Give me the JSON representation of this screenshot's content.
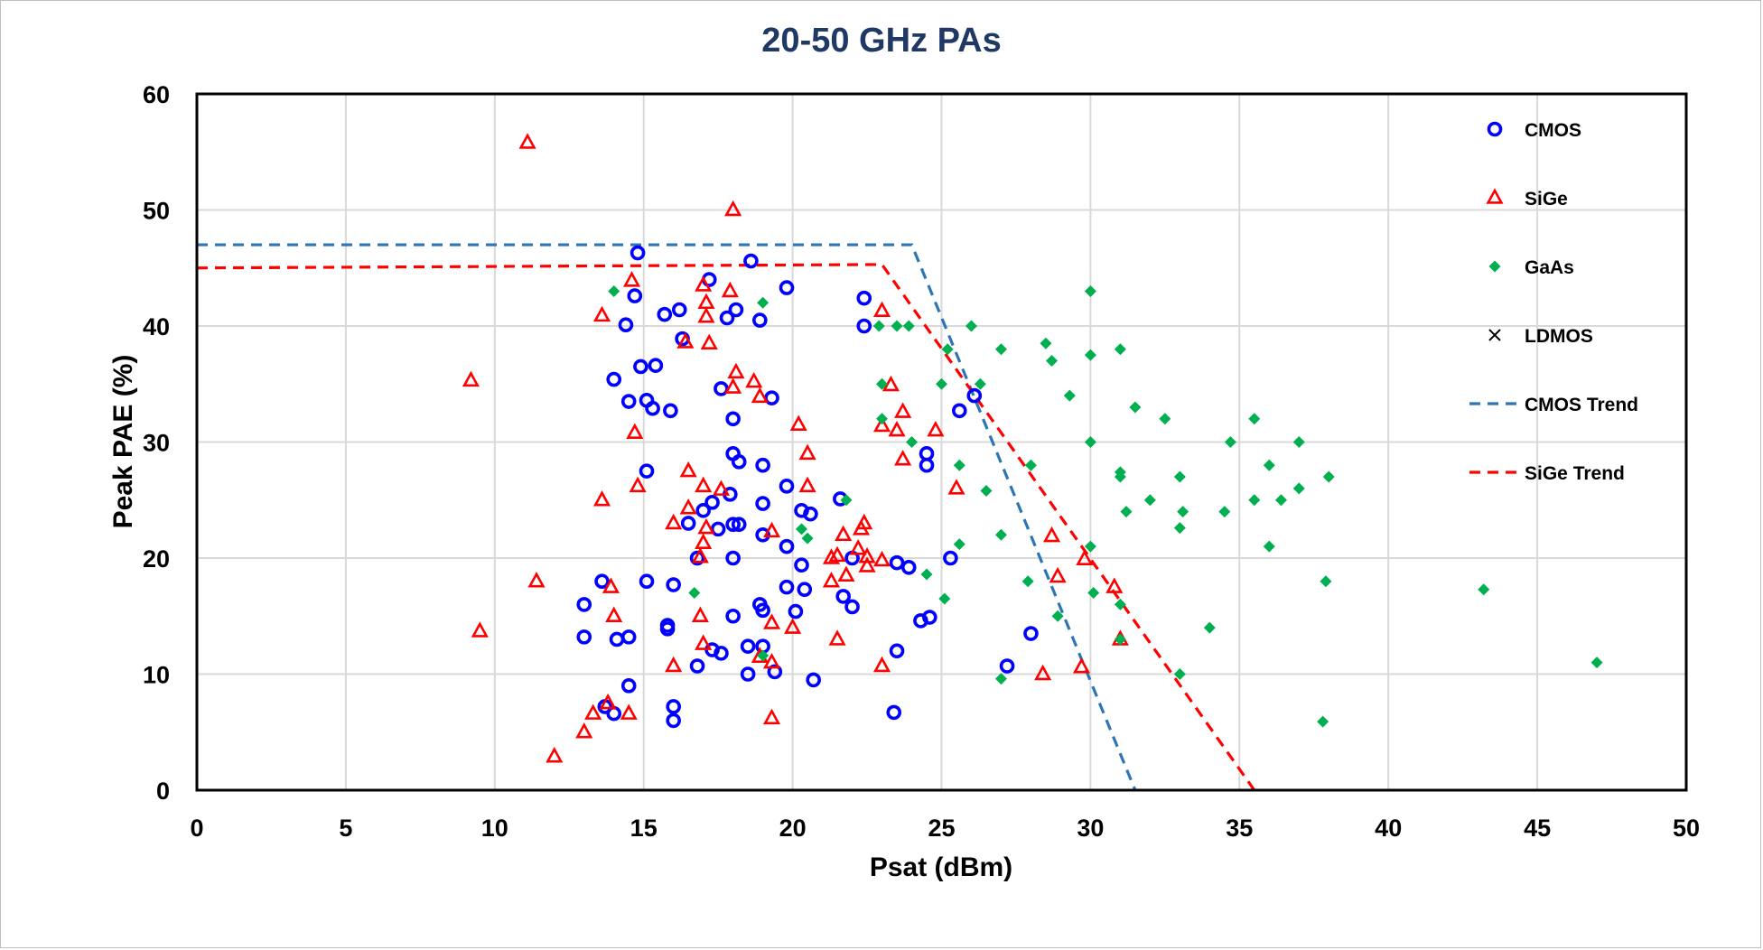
{
  "chart_data": {
    "type": "scatter",
    "title": "20-50 GHz PAs",
    "xlabel": "Psat (dBm)",
    "ylabel": "Peak PAE (%)",
    "xlim": [
      0,
      50
    ],
    "ylim": [
      0,
      60
    ],
    "x_ticks": [
      0,
      5,
      10,
      15,
      20,
      25,
      30,
      35,
      40,
      45,
      50
    ],
    "y_ticks": [
      0,
      10,
      20,
      30,
      40,
      50,
      60
    ],
    "grid": true,
    "legend_position": "right",
    "series": [
      {
        "name": "CMOS",
        "marker": "open-circle",
        "color": "#0000ff",
        "points": [
          [
            14.8,
            46.3
          ],
          [
            17.2,
            44.0
          ],
          [
            18.6,
            45.6
          ],
          [
            19.8,
            43.3
          ],
          [
            14.7,
            42.6
          ],
          [
            22.4,
            42.4
          ],
          [
            16.2,
            41.4
          ],
          [
            15.7,
            41.0
          ],
          [
            18.1,
            41.4
          ],
          [
            17.8,
            40.7
          ],
          [
            18.9,
            40.5
          ],
          [
            14.4,
            40.1
          ],
          [
            22.4,
            40.0
          ],
          [
            16.3,
            38.9
          ],
          [
            14.9,
            36.5
          ],
          [
            15.4,
            36.6
          ],
          [
            14.0,
            35.4
          ],
          [
            17.6,
            34.6
          ],
          [
            15.1,
            33.6
          ],
          [
            14.5,
            33.5
          ],
          [
            15.3,
            32.9
          ],
          [
            15.9,
            32.7
          ],
          [
            19.3,
            33.8
          ],
          [
            18.0,
            32.0
          ],
          [
            25.6,
            32.7
          ],
          [
            26.1,
            34.0
          ],
          [
            18.0,
            29.0
          ],
          [
            18.2,
            28.3
          ],
          [
            19.0,
            28.0
          ],
          [
            24.5,
            28.0
          ],
          [
            24.5,
            29.0
          ],
          [
            15.1,
            27.5
          ],
          [
            19.8,
            26.2
          ],
          [
            17.9,
            25.5
          ],
          [
            21.6,
            25.1
          ],
          [
            19.0,
            24.7
          ],
          [
            17.3,
            24.8
          ],
          [
            17.0,
            24.1
          ],
          [
            20.3,
            24.1
          ],
          [
            20.6,
            23.8
          ],
          [
            16.5,
            23.0
          ],
          [
            18.0,
            22.9
          ],
          [
            18.2,
            22.9
          ],
          [
            17.5,
            22.5
          ],
          [
            19.0,
            22.0
          ],
          [
            19.8,
            21.0
          ],
          [
            16.8,
            20.0
          ],
          [
            18.0,
            20.0
          ],
          [
            20.3,
            19.4
          ],
          [
            22.0,
            20.0
          ],
          [
            23.5,
            19.6
          ],
          [
            23.9,
            19.2
          ],
          [
            25.3,
            20.0
          ],
          [
            13.6,
            18.0
          ],
          [
            15.1,
            18.0
          ],
          [
            16.0,
            17.7
          ],
          [
            19.8,
            17.5
          ],
          [
            20.4,
            17.3
          ],
          [
            21.7,
            16.7
          ],
          [
            22.0,
            15.8
          ],
          [
            13.0,
            16.0
          ],
          [
            18.9,
            16.0
          ],
          [
            19.0,
            15.5
          ],
          [
            20.1,
            15.4
          ],
          [
            18.0,
            15.0
          ],
          [
            24.3,
            14.6
          ],
          [
            24.6,
            14.9
          ],
          [
            15.8,
            14.2
          ],
          [
            15.8,
            13.9
          ],
          [
            13.0,
            13.2
          ],
          [
            14.1,
            13.0
          ],
          [
            14.5,
            13.2
          ],
          [
            28.0,
            13.5
          ],
          [
            18.5,
            12.4
          ],
          [
            19.0,
            12.4
          ],
          [
            17.3,
            12.1
          ],
          [
            17.6,
            11.8
          ],
          [
            23.5,
            12.0
          ],
          [
            16.8,
            10.7
          ],
          [
            18.5,
            10.0
          ],
          [
            19.4,
            10.2
          ],
          [
            20.7,
            9.5
          ],
          [
            27.2,
            10.7
          ],
          [
            14.5,
            9.0
          ],
          [
            16.0,
            7.2
          ],
          [
            13.7,
            7.2
          ],
          [
            14.0,
            6.6
          ],
          [
            16.0,
            6.0
          ],
          [
            23.4,
            6.7
          ]
        ]
      },
      {
        "name": "SiGe",
        "marker": "open-triangle",
        "color": "#ff0000",
        "points": [
          [
            11.1,
            55.8
          ],
          [
            18.0,
            50.0
          ],
          [
            14.6,
            43.9
          ],
          [
            17.0,
            43.5
          ],
          [
            17.9,
            43.0
          ],
          [
            17.1,
            42.0
          ],
          [
            23.0,
            41.3
          ],
          [
            13.6,
            40.9
          ],
          [
            17.1,
            40.8
          ],
          [
            16.4,
            38.6
          ],
          [
            17.2,
            38.5
          ],
          [
            9.2,
            35.3
          ],
          [
            18.1,
            36.0
          ],
          [
            18.0,
            34.7
          ],
          [
            18.7,
            35.2
          ],
          [
            18.9,
            33.9
          ],
          [
            23.3,
            34.9
          ],
          [
            23.7,
            32.6
          ],
          [
            23.0,
            31.4
          ],
          [
            23.5,
            31.0
          ],
          [
            24.8,
            31.0
          ],
          [
            20.2,
            31.5
          ],
          [
            14.7,
            30.8
          ],
          [
            20.5,
            29.0
          ],
          [
            23.7,
            28.5
          ],
          [
            16.5,
            27.5
          ],
          [
            14.8,
            26.2
          ],
          [
            17.0,
            26.2
          ],
          [
            17.6,
            25.9
          ],
          [
            20.5,
            26.2
          ],
          [
            25.5,
            26.0
          ],
          [
            13.6,
            25.0
          ],
          [
            16.5,
            24.3
          ],
          [
            16.0,
            23.0
          ],
          [
            17.1,
            22.6
          ],
          [
            19.3,
            22.3
          ],
          [
            21.7,
            22.0
          ],
          [
            22.4,
            23.0
          ],
          [
            22.3,
            22.5
          ],
          [
            28.7,
            21.9
          ],
          [
            17.0,
            21.3
          ],
          [
            22.2,
            20.8
          ],
          [
            16.9,
            20.1
          ],
          [
            21.3,
            20.0
          ],
          [
            21.5,
            20.2
          ],
          [
            22.5,
            20.1
          ],
          [
            23.0,
            19.8
          ],
          [
            22.5,
            19.3
          ],
          [
            29.8,
            19.9
          ],
          [
            21.8,
            18.5
          ],
          [
            11.4,
            18.0
          ],
          [
            21.3,
            18.0
          ],
          [
            28.9,
            18.4
          ],
          [
            13.9,
            17.5
          ],
          [
            30.8,
            17.5
          ],
          [
            16.9,
            15.0
          ],
          [
            14.0,
            15.0
          ],
          [
            19.3,
            14.4
          ],
          [
            20.0,
            14.0
          ],
          [
            9.5,
            13.7
          ],
          [
            21.5,
            13.0
          ],
          [
            31.0,
            13.0
          ],
          [
            17.0,
            12.6
          ],
          [
            18.9,
            11.5
          ],
          [
            19.3,
            11.0
          ],
          [
            16.0,
            10.7
          ],
          [
            23.0,
            10.7
          ],
          [
            29.7,
            10.6
          ],
          [
            28.4,
            10.0
          ],
          [
            13.8,
            7.5
          ],
          [
            13.3,
            6.6
          ],
          [
            14.5,
            6.6
          ],
          [
            19.3,
            6.2
          ],
          [
            13.0,
            5.0
          ],
          [
            12.0,
            2.9
          ]
        ]
      },
      {
        "name": "GaAs",
        "marker": "filled-diamond",
        "color": "#00b050",
        "points": [
          [
            14.0,
            43.0
          ],
          [
            19.0,
            42.0
          ],
          [
            30.0,
            43.0
          ],
          [
            22.9,
            40.0
          ],
          [
            23.5,
            40.0
          ],
          [
            23.9,
            40.0
          ],
          [
            26.0,
            40.0
          ],
          [
            28.5,
            38.5
          ],
          [
            25.2,
            38.0
          ],
          [
            27.0,
            38.0
          ],
          [
            31.0,
            38.0
          ],
          [
            28.7,
            37.0
          ],
          [
            30.0,
            37.5
          ],
          [
            23.0,
            35.0
          ],
          [
            25.0,
            35.0
          ],
          [
            26.3,
            35.0
          ],
          [
            29.3,
            34.0
          ],
          [
            31.5,
            33.0
          ],
          [
            32.5,
            32.0
          ],
          [
            35.5,
            32.0
          ],
          [
            23.0,
            32.0
          ],
          [
            30.0,
            30.0
          ],
          [
            34.7,
            30.0
          ],
          [
            37.0,
            30.0
          ],
          [
            24.0,
            30.0
          ],
          [
            25.6,
            28.0
          ],
          [
            28.0,
            28.0
          ],
          [
            31.0,
            27.4
          ],
          [
            31.0,
            27.0
          ],
          [
            33.0,
            27.0
          ],
          [
            38.0,
            27.0
          ],
          [
            36.0,
            28.0
          ],
          [
            26.5,
            25.8
          ],
          [
            37.0,
            26.0
          ],
          [
            21.8,
            25.0
          ],
          [
            32.0,
            25.0
          ],
          [
            35.5,
            25.0
          ],
          [
            36.4,
            25.0
          ],
          [
            31.2,
            24.0
          ],
          [
            33.1,
            24.0
          ],
          [
            34.5,
            24.0
          ],
          [
            20.3,
            22.5
          ],
          [
            20.5,
            21.7
          ],
          [
            27.0,
            22.0
          ],
          [
            33.0,
            22.6
          ],
          [
            25.6,
            21.2
          ],
          [
            30.0,
            21.0
          ],
          [
            36.0,
            21.0
          ],
          [
            24.5,
            18.6
          ],
          [
            27.9,
            18.0
          ],
          [
            37.9,
            18.0
          ],
          [
            16.7,
            17.0
          ],
          [
            25.1,
            16.5
          ],
          [
            30.1,
            17.0
          ],
          [
            31.0,
            16.0
          ],
          [
            43.2,
            17.3
          ],
          [
            28.9,
            15.0
          ],
          [
            34.0,
            14.0
          ],
          [
            31.0,
            13.0
          ],
          [
            19.0,
            11.6
          ],
          [
            47.0,
            11.0
          ],
          [
            27.0,
            9.6
          ],
          [
            33.0,
            10.0
          ],
          [
            37.8,
            5.9
          ]
        ]
      },
      {
        "name": "LDMOS",
        "marker": "x",
        "color": "#000000",
        "points": []
      },
      {
        "name": "CMOS Trend",
        "type": "line",
        "style": "dashed",
        "color": "#2e75b6",
        "points": [
          [
            0,
            47
          ],
          [
            24,
            47
          ],
          [
            31.5,
            0
          ]
        ]
      },
      {
        "name": "SiGe Trend",
        "type": "line",
        "style": "dashed",
        "color": "#ff0000",
        "points": [
          [
            0,
            45
          ],
          [
            23,
            45.3
          ],
          [
            35.5,
            0
          ]
        ]
      }
    ]
  }
}
